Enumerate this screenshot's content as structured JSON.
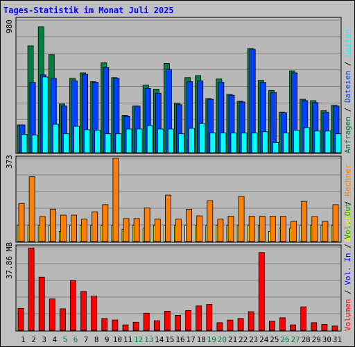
{
  "colors": {
    "frame_bg": "#c0c0c0",
    "plot_bg": "#b8b8b8",
    "title": "#0000ff",
    "grid": "#808080",
    "anfragen": "#008040",
    "dateien": "#0040ff",
    "seiten": "#00ffff",
    "besuche": "#ffff00",
    "rechner": "#ff8000",
    "volumen": "#ff0000",
    "vol_in": "#0000ff",
    "vol_out": "#00a000",
    "day_normal": "#000000",
    "day_weekend": "#008040"
  },
  "chart_data": {
    "type": "bar",
    "title": "Tages-Statistik im Monat Juli 2025",
    "x": [
      "1",
      "2",
      "3",
      "4",
      "5",
      "6",
      "7",
      "8",
      "9",
      "10",
      "11",
      "12",
      "13",
      "14",
      "15",
      "16",
      "17",
      "18",
      "19",
      "20",
      "21",
      "22",
      "23",
      "24",
      "25",
      "26",
      "27",
      "28",
      "29",
      "30",
      "31"
    ],
    "weekend_days": [
      "5",
      "6",
      "12",
      "13",
      "19",
      "20",
      "26",
      "27"
    ],
    "panels": [
      {
        "id": "requests",
        "ymax_label": "980",
        "ylim": [
          0,
          980
        ],
        "legend": [
          {
            "label": "Anfragen",
            "color_key": "anfragen"
          },
          {
            "label": "Dateien",
            "color_key": "dateien"
          },
          {
            "label": "Seiten",
            "color_key": "seiten"
          }
        ],
        "series": [
          {
            "name": "Anfragen",
            "color_key": "anfragen",
            "values": [
              205,
              790,
              930,
              725,
              360,
              550,
              590,
              525,
              665,
              555,
              275,
              345,
              500,
              470,
              660,
              365,
              555,
              570,
              400,
              545,
              430,
              380,
              770,
              535,
              460,
              300,
              605,
              395,
              385,
              310,
              350
            ]
          },
          {
            "name": "Dateien",
            "color_key": "dateien",
            "values": [
              205,
              520,
              575,
              550,
              345,
              530,
              580,
              520,
              630,
              550,
              270,
              345,
              475,
              440,
              615,
              355,
              525,
              530,
              395,
              520,
              425,
              375,
              765,
              520,
              445,
              295,
              590,
              385,
              370,
              300,
              345
            ]
          },
          {
            "name": "Seiten",
            "color_key": "seiten",
            "values": [
              135,
              130,
              560,
              210,
              140,
              195,
              170,
              165,
              140,
              140,
              175,
              175,
              200,
              175,
              175,
              140,
              180,
              215,
              145,
              145,
              145,
              145,
              145,
              155,
              75,
              145,
              165,
              185,
              160,
              160,
              140
            ]
          }
        ]
      },
      {
        "id": "visits",
        "ymax_label": "373",
        "ylim": [
          0,
          373
        ],
        "legend": [
          {
            "label": "Besuche",
            "color_key": "besuche"
          },
          {
            "label": "Rechner",
            "color_key": "rechner"
          }
        ],
        "series": [
          {
            "name": "Besuche",
            "color_key": "besuche",
            "values": [
              72,
              72,
              72,
              72,
              45,
              72,
              72,
              72,
              72,
              72,
              55,
              72,
              60,
              72,
              72,
              72,
              72,
              72,
              72,
              72,
              72,
              72,
              72,
              72,
              45,
              60,
              60,
              72,
              72,
              72,
              72
            ]
          },
          {
            "name": "Rechner",
            "color_key": "rechner",
            "values": [
              170,
              290,
              112,
              145,
              118,
              118,
              100,
              133,
              165,
              373,
              103,
              103,
              150,
              100,
              208,
              100,
              145,
              115,
              183,
              100,
              113,
              202,
              113,
              113,
              113,
              113,
              90,
              180,
              112,
              90,
              165
            ]
          }
        ]
      },
      {
        "id": "volume",
        "ymax_label": "37.86 MB",
        "ylim": [
          0,
          37.86
        ],
        "legend": [
          {
            "label": "Volumen",
            "color_key": "volumen"
          },
          {
            "label": "Vol. In",
            "color_key": "vol_in"
          },
          {
            "label": "Vol. Out",
            "color_key": "vol_out"
          }
        ],
        "series": [
          {
            "name": "Volumen",
            "color_key": "volumen",
            "values": [
              10.0,
              37.4,
              24.2,
              14.3,
              9.8,
              22.6,
              17.7,
              15.6,
              5.4,
              4.7,
              2.5,
              3.7,
              7.8,
              4.4,
              8.7,
              6.8,
              9.0,
              11.1,
              11.8,
              3.5,
              4.7,
              5.4,
              8.5,
              35.4,
              4.1,
              5.7,
              2.5,
              10.7,
              3.5,
              2.7,
              2.0
            ]
          }
        ]
      }
    ]
  }
}
